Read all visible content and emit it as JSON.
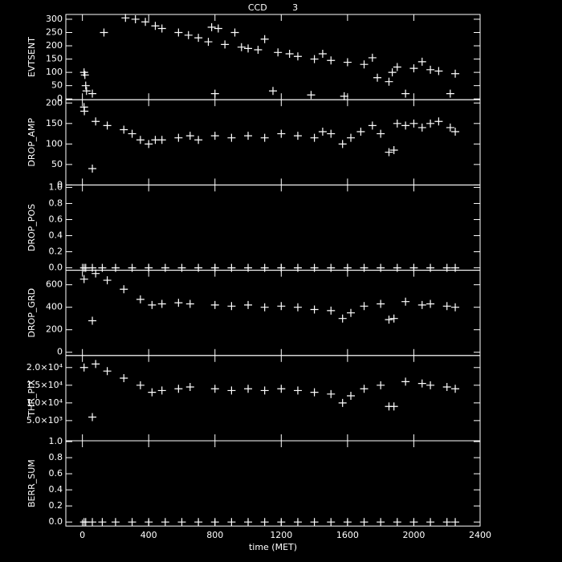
{
  "chart_data": [
    {
      "type": "scatter",
      "title": "CCD         3",
      "ylabel": "EVTSENT",
      "color": "#ffffff",
      "xlim": [
        -100,
        2400
      ],
      "ylim": [
        -3,
        318
      ],
      "yticks": [
        0,
        50,
        100,
        150,
        200,
        250,
        300
      ],
      "x": [
        10,
        15,
        20,
        25,
        60,
        130,
        260,
        320,
        380,
        440,
        480,
        580,
        640,
        700,
        760,
        780,
        800,
        820,
        860,
        920,
        960,
        1000,
        1060,
        1100,
        1150,
        1180,
        1250,
        1300,
        1380,
        1400,
        1450,
        1500,
        1580,
        1600,
        1700,
        1750,
        1780,
        1850,
        1870,
        1900,
        1950,
        2000,
        2050,
        2100,
        2150,
        2220,
        2250
      ],
      "y": [
        100,
        90,
        50,
        30,
        20,
        250,
        305,
        300,
        290,
        275,
        265,
        250,
        240,
        230,
        215,
        270,
        20,
        265,
        205,
        250,
        195,
        190,
        185,
        225,
        30,
        175,
        170,
        160,
        15,
        150,
        170,
        145,
        10,
        138,
        130,
        155,
        80,
        65,
        100,
        120,
        20,
        115,
        140,
        110,
        105,
        20,
        95
      ]
    },
    {
      "type": "scatter",
      "ylabel": "DROP_AMP",
      "color": "#ffffff",
      "xlim": [
        -100,
        2400
      ],
      "ylim": [
        0,
        208
      ],
      "yticks": [
        0,
        50,
        100,
        150,
        200
      ],
      "x": [
        10,
        12,
        60,
        80,
        150,
        250,
        300,
        350,
        400,
        440,
        480,
        580,
        650,
        700,
        800,
        900,
        1000,
        1100,
        1200,
        1300,
        1400,
        1450,
        1500,
        1570,
        1620,
        1680,
        1750,
        1800,
        1850,
        1880,
        1900,
        1950,
        2000,
        2050,
        2100,
        2150,
        2220,
        2250
      ],
      "y": [
        190,
        180,
        40,
        155,
        145,
        135,
        125,
        110,
        100,
        110,
        110,
        115,
        120,
        110,
        120,
        115,
        120,
        115,
        125,
        120,
        115,
        130,
        125,
        100,
        115,
        130,
        145,
        125,
        80,
        85,
        150,
        145,
        150,
        140,
        150,
        155,
        140,
        130
      ]
    },
    {
      "type": "scatter",
      "ylabel": "DROP_POS",
      "color": "#ffffff",
      "xlim": [
        -100,
        2400
      ],
      "ylim": [
        -0.03,
        1.03
      ],
      "yticks": [
        {
          "value": 0,
          "label": "0.0"
        },
        0.2,
        0.4,
        0.6,
        0.8,
        {
          "value": 1,
          "label": "1.0"
        }
      ],
      "x": [
        10,
        20,
        60,
        120,
        200,
        300,
        400,
        500,
        600,
        700,
        800,
        900,
        1000,
        1100,
        1200,
        1300,
        1400,
        1500,
        1600,
        1700,
        1800,
        1900,
        2000,
        2100,
        2200,
        2250
      ],
      "y": [
        0,
        0,
        0,
        0,
        0,
        0,
        0,
        0,
        0,
        0,
        0,
        0,
        0,
        0,
        0,
        0,
        0,
        0,
        0,
        0,
        0,
        0,
        0,
        0,
        0,
        0
      ]
    },
    {
      "type": "scatter",
      "ylabel": "DROP_GRD",
      "color": "#ffffff",
      "xlim": [
        -100,
        2400
      ],
      "ylim": [
        -29,
        729
      ],
      "yticks": [
        0,
        200,
        400,
        600
      ],
      "x": [
        10,
        60,
        80,
        150,
        250,
        350,
        420,
        480,
        580,
        650,
        800,
        900,
        1000,
        1100,
        1200,
        1300,
        1400,
        1500,
        1570,
        1620,
        1700,
        1800,
        1850,
        1880,
        1950,
        2050,
        2100,
        2200,
        2250
      ],
      "y": [
        650,
        280,
        700,
        640,
        560,
        470,
        420,
        430,
        440,
        430,
        420,
        410,
        420,
        400,
        410,
        400,
        380,
        370,
        300,
        350,
        410,
        430,
        290,
        300,
        450,
        420,
        430,
        410,
        400
      ]
    },
    {
      "type": "scatter",
      "ylabel": "THR_PIX",
      "color": "#ffffff",
      "xlim": [
        -100,
        2400
      ],
      "ylim": [
        -700,
        23400
      ],
      "yticks": [
        {
          "value": 5000,
          "label": "5.0×10³"
        },
        {
          "value": 10000,
          "label": "1.0×10⁴"
        },
        {
          "value": 15000,
          "label": "1.5×10⁴"
        },
        {
          "value": 20000,
          "label": "2.0×10⁴"
        }
      ],
      "x": [
        10,
        60,
        80,
        150,
        250,
        350,
        420,
        480,
        580,
        650,
        800,
        900,
        1000,
        1100,
        1200,
        1300,
        1400,
        1500,
        1570,
        1620,
        1700,
        1800,
        1850,
        1880,
        1950,
        2050,
        2100,
        2200,
        2250
      ],
      "y": [
        20000,
        6000,
        21000,
        19000,
        17000,
        15000,
        13000,
        13500,
        14000,
        14500,
        14000,
        13500,
        14000,
        13500,
        14000,
        13500,
        13000,
        12500,
        10000,
        12000,
        14000,
        15000,
        9000,
        9000,
        16000,
        15500,
        15000,
        14500,
        14000
      ]
    },
    {
      "type": "scatter",
      "ylabel": "BERR_SUM",
      "xlabel": "time (MET)",
      "color": "#ffffff",
      "xlim": [
        -100,
        2400
      ],
      "ylim": [
        -0.05,
        1.01
      ],
      "yticks": [
        {
          "value": 0,
          "label": "0.0"
        },
        0.2,
        0.4,
        0.6,
        0.8,
        {
          "value": 1,
          "label": "1.0"
        }
      ],
      "xticks": [
        0,
        400,
        800,
        1200,
        1600,
        2000,
        2400
      ],
      "x": [
        10,
        20,
        60,
        120,
        200,
        300,
        400,
        500,
        600,
        700,
        800,
        900,
        1000,
        1100,
        1200,
        1300,
        1400,
        1500,
        1600,
        1700,
        1800,
        1900,
        2000,
        2100,
        2200,
        2250
      ],
      "y": [
        0,
        0,
        0,
        0,
        0,
        0,
        0,
        0,
        0,
        0,
        0,
        0,
        0,
        0,
        0,
        0,
        0,
        0,
        0,
        0,
        0,
        0,
        0,
        0,
        0,
        0
      ]
    }
  ]
}
